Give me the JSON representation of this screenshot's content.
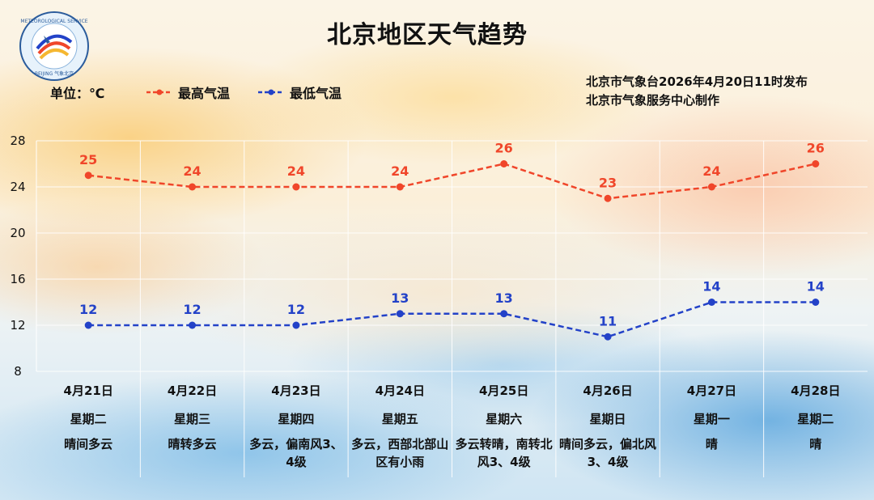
{
  "title": "北京地区天气趋势",
  "unit_label": "单位：℃",
  "legend": {
    "high_label": "最高气温",
    "low_label": "最低气温"
  },
  "publisher": {
    "line1": "北京市气象台2026年4月20日11时发布",
    "line2": "北京市气象服务中心制作"
  },
  "logo": {
    "top_text": "METEOROLOGICAL SERVICE",
    "bottom_text": "BEIJING 气象北京"
  },
  "colors": {
    "high": "#f0462a",
    "low": "#2342c8",
    "grid": "#ffffff"
  },
  "chart_data": {
    "type": "line",
    "title": "北京地区天气趋势",
    "ylim": [
      8,
      28
    ],
    "yticks": [
      8,
      12,
      16,
      20,
      24,
      28
    ],
    "grid": true,
    "legend_position": "top-left",
    "categories": [
      "4月21日",
      "4月22日",
      "4月23日",
      "4月24日",
      "4月25日",
      "4月26日",
      "4月27日",
      "4月28日"
    ],
    "weekdays": [
      "星期二",
      "星期三",
      "星期四",
      "星期五",
      "星期六",
      "星期日",
      "星期一",
      "星期二"
    ],
    "weather": [
      "晴间多云",
      "晴转多云",
      "多云，偏南风3、4级",
      "多云，西部北部山区有小雨",
      "多云转晴，南转北风3、4级",
      "晴间多云，偏北风3、4级",
      "晴",
      "晴"
    ],
    "series": [
      {
        "name": "最高气温",
        "values": [
          25,
          24,
          24,
          24,
          26,
          23,
          24,
          26
        ]
      },
      {
        "name": "最低气温",
        "values": [
          12,
          12,
          12,
          13,
          13,
          11,
          14,
          14
        ]
      }
    ]
  }
}
